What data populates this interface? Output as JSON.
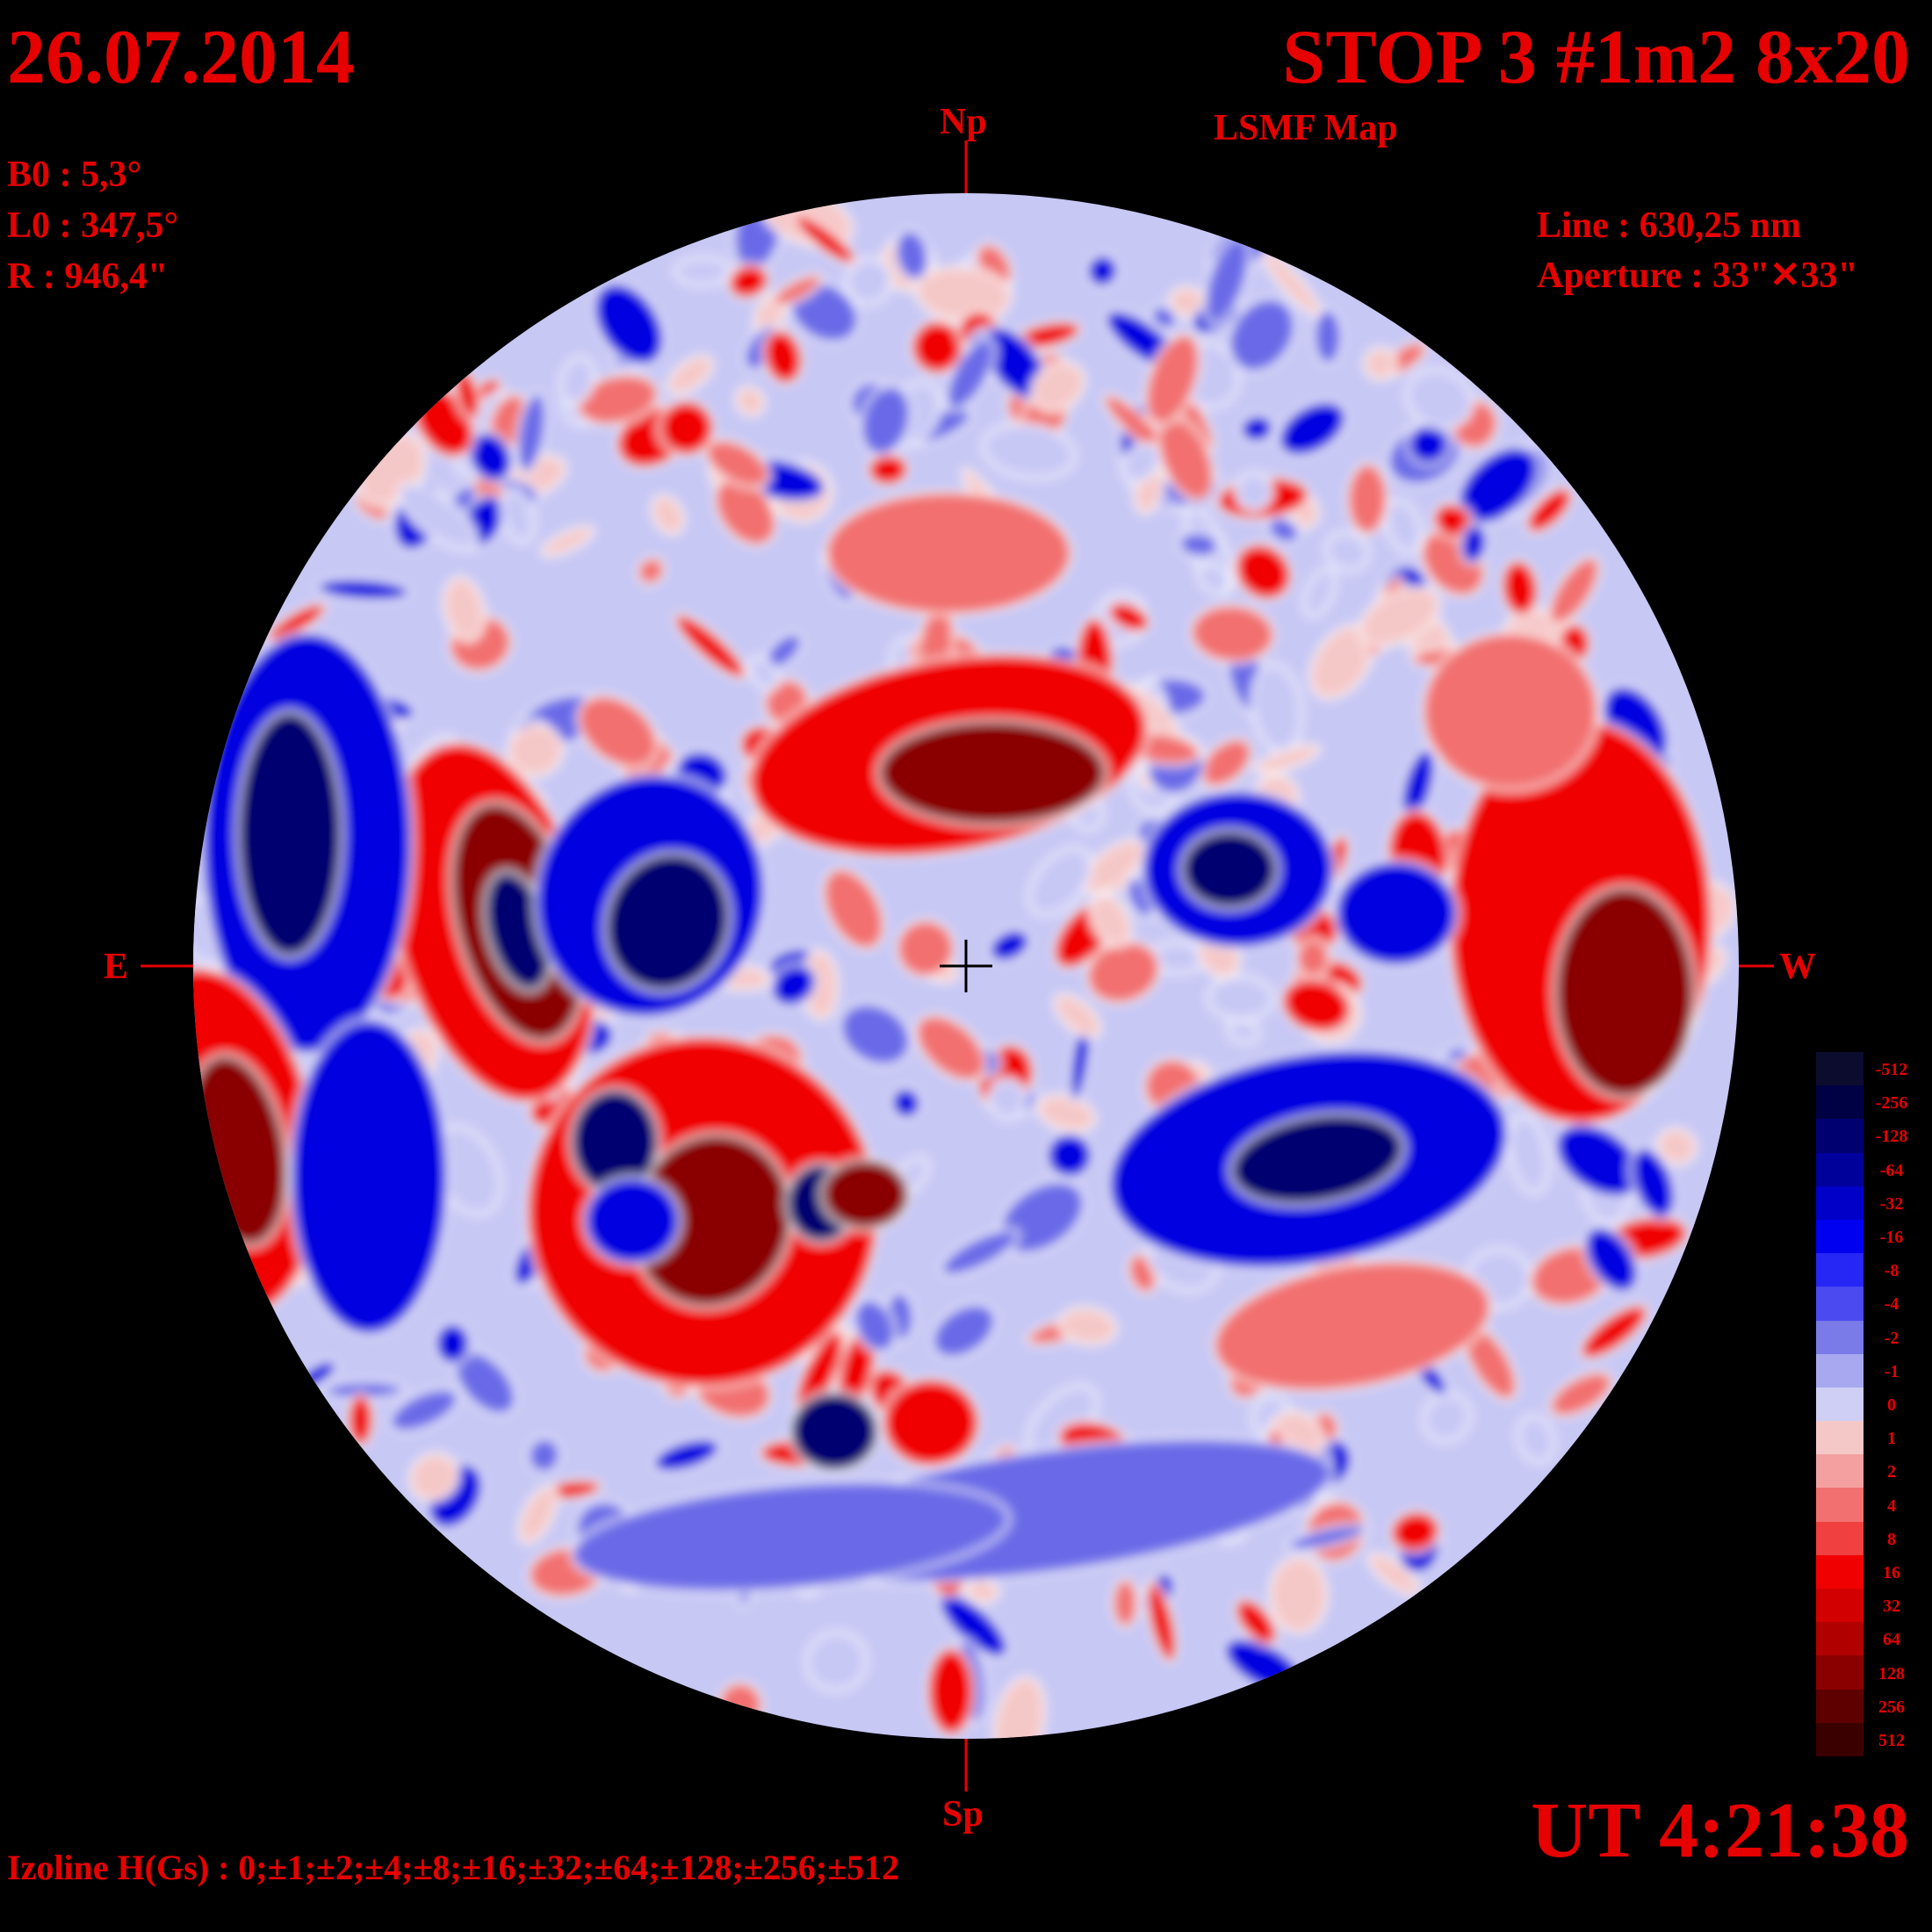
{
  "header": {
    "date": "26.07.2014",
    "title": "STOP 3 #1m2 8x20",
    "subtitle": "LSMF  Map"
  },
  "params": {
    "b0": "B0 : 5,3°",
    "l0": "L0 : 347,5°",
    "r": "R  : 946,4\"",
    "line": "Line :  630,25 nm",
    "aperture": "Aperture : 33\"✕33\""
  },
  "directions": {
    "north": "Np",
    "south": "Sp",
    "east": "E",
    "west": "W"
  },
  "time": "UT 4:21:38",
  "izoline": "Izoline H(Gs) : 0;±1;±2;±4;±8;±16;±32;±64;±128;±256;±512",
  "legend": {
    "labels": [
      "-512",
      "-256",
      "-128",
      "-64",
      "-32",
      "-16",
      "-8",
      "-4",
      "-2",
      "-1",
      "0",
      "1",
      "2",
      "4",
      "8",
      "16",
      "32",
      "64",
      "128",
      "256",
      "512"
    ],
    "colors": [
      "#0c0c2e",
      "#000044",
      "#000070",
      "#00009a",
      "#0000c8",
      "#0000f0",
      "#2626f5",
      "#4a4af0",
      "#7a7ae8",
      "#a8a8f0",
      "#cfcff5",
      "#f5c8c8",
      "#f4a0a0",
      "#f27070",
      "#f04040",
      "#f00000",
      "#d20000",
      "#b00000",
      "#8a0000",
      "#5e0000",
      "#3a0000"
    ]
  },
  "map": {
    "colors": {
      "strong_negative": "#000070",
      "negative": "#0000e0",
      "weak_negative": "#6a6ae8",
      "faint_negative": "#c8c8f5",
      "faint_positive": "#f5c8c8",
      "weak_positive": "#f27070",
      "positive": "#f00000",
      "strong_positive": "#8a0000",
      "isoline": "#ffffff"
    }
  }
}
